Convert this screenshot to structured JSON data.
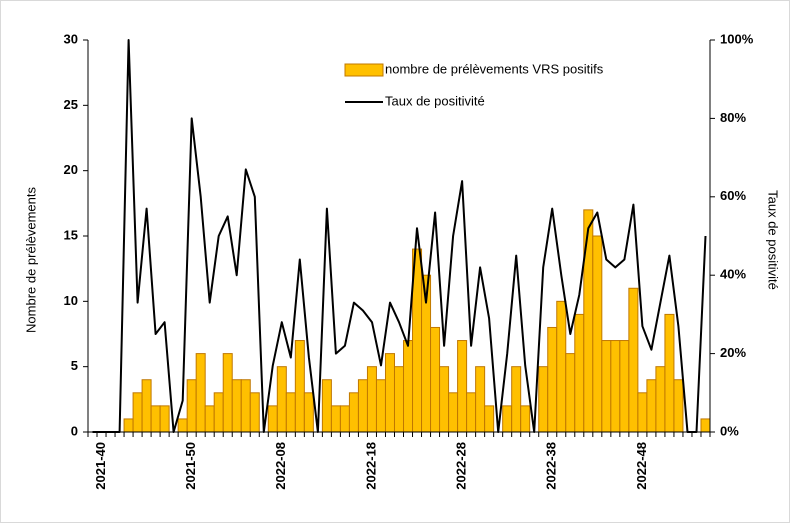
{
  "chart_data": {
    "type": "bar-line",
    "categories": [
      null,
      "2021-40",
      null,
      null,
      null,
      null,
      null,
      null,
      null,
      null,
      null,
      "2021-50",
      null,
      null,
      null,
      null,
      null,
      null,
      null,
      null,
      null,
      "2022-08",
      null,
      null,
      null,
      null,
      null,
      null,
      null,
      null,
      null,
      "2022-18",
      null,
      null,
      null,
      null,
      null,
      null,
      null,
      null,
      null,
      "2022-28",
      null,
      null,
      null,
      null,
      null,
      null,
      null,
      null,
      null,
      "2022-38",
      null,
      null,
      null,
      null,
      null,
      null,
      null,
      null,
      null,
      "2022-48",
      null,
      null,
      null,
      null,
      null,
      null,
      null
    ],
    "series": [
      {
        "name": "nombre de prélèvements VRS positifs",
        "type": "bar",
        "color": "#ffc000",
        "edge": "#c07800",
        "values": [
          0,
          0,
          0,
          0,
          1,
          3,
          4,
          2,
          2,
          0,
          1,
          4,
          6,
          2,
          3,
          6,
          4,
          4,
          3,
          0,
          2,
          5,
          3,
          7,
          3,
          0,
          4,
          2,
          2,
          3,
          4,
          5,
          4,
          6,
          5,
          7,
          14,
          12,
          8,
          5,
          3,
          7,
          3,
          5,
          2,
          0,
          2,
          5,
          2,
          0,
          5,
          8,
          10,
          6,
          9,
          17,
          15,
          7,
          7,
          7,
          11,
          3,
          4,
          5,
          9,
          4,
          0,
          0,
          1
        ]
      },
      {
        "name": "Taux de positivité",
        "type": "line",
        "color": "#000000",
        "axis": "y2",
        "values": [
          0,
          0,
          0,
          0,
          100,
          33,
          57,
          25,
          28,
          0,
          8,
          80,
          60,
          33,
          50,
          55,
          40,
          67,
          60,
          0,
          17,
          28,
          19,
          44,
          19,
          0,
          57,
          20,
          22,
          33,
          31,
          28,
          17,
          33,
          28,
          22,
          52,
          33,
          56,
          22,
          50,
          64,
          22,
          42,
          29,
          0,
          20,
          45,
          17,
          0,
          42,
          57,
          40,
          25,
          35,
          52,
          56,
          44,
          42,
          44,
          58,
          27,
          21,
          33,
          45,
          27,
          0,
          0,
          50
        ]
      }
    ],
    "ylabel": "Nombre de prélèvements",
    "y2label": "Taux de positivité",
    "ylim": [
      0,
      30
    ],
    "yticks": [
      0,
      5,
      10,
      15,
      20,
      25,
      30
    ],
    "y2lim": [
      0,
      100
    ],
    "y2ticks": [
      {
        "value": 0,
        "label": "0%"
      },
      {
        "value": 20,
        "label": "20%"
      },
      {
        "value": 40,
        "label": "40%"
      },
      {
        "value": 60,
        "label": "60%"
      },
      {
        "value": 80,
        "label": "80%"
      },
      {
        "value": 100,
        "label": "100%"
      }
    ],
    "legend": "top-right"
  }
}
